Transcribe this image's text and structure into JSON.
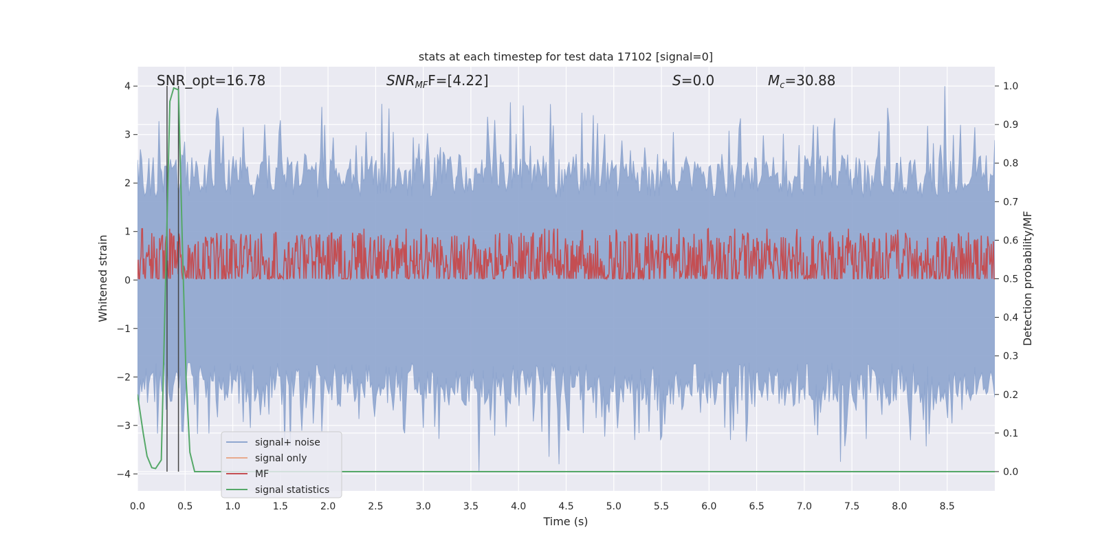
{
  "chart_data": {
    "type": "line",
    "title": "stats at each timestep for test data 17102 [signal=0]",
    "xlabel": "Time (s)",
    "ylabel": "Whitened strain",
    "ylabel_right": "Detection probability/MF",
    "xlim": [
      0.0,
      9.0
    ],
    "ylim": [
      -4.35,
      4.4
    ],
    "ylim_right": [
      -0.05,
      1.05
    ],
    "grid": true,
    "x_ticks": [
      "0.0",
      "0.5",
      "1.0",
      "1.5",
      "2.0",
      "2.5",
      "3.0",
      "3.5",
      "4.0",
      "4.5",
      "5.0",
      "5.5",
      "6.0",
      "6.5",
      "7.0",
      "7.5",
      "8.0",
      "8.5"
    ],
    "y_ticks": [
      "4",
      "3",
      "2",
      "1",
      "0",
      "−1",
      "−2",
      "−3",
      "−4"
    ],
    "y_ticks_right": [
      "1.0",
      "0.9",
      "0.8",
      "0.7",
      "0.6",
      "0.5",
      "0.4",
      "0.3",
      "0.2",
      "0.1",
      "0.0"
    ],
    "annotations": {
      "snr_opt": "SNR_opt=16.78",
      "snr_mf_main": "SNR",
      "snr_mf_sub": "MF",
      "snr_mf_rest": "F=[4.22]",
      "s_main": "S",
      "s_rest": "=0.0",
      "mc_main": "M",
      "mc_sub": "c",
      "mc_rest": "=30.88"
    },
    "vlines_x": [
      0.31,
      0.43
    ],
    "series": [
      {
        "name": "signal+ noise",
        "color": "#8fa6cf",
        "envelope": {
          "x_start": 0.0,
          "x_end": 9.0,
          "bins": 600,
          "seed": 17102,
          "upper_base": 1.7,
          "lower_base": -1.7,
          "notable_peaks": [
            [
              0.84,
              3.55
            ],
            [
              1.97,
              3.2
            ],
            [
              3.75,
              3.3
            ],
            [
              4.05,
              3.6
            ],
            [
              4.67,
              3.45
            ],
            [
              5.62,
              3.05
            ],
            [
              7.1,
              3.2
            ],
            [
              7.88,
              3.55
            ],
            [
              8.47,
              4.0
            ],
            [
              3.58,
              -3.95
            ],
            [
              4.42,
              -3.8
            ],
            [
              7.38,
              -3.75
            ],
            [
              6.22,
              -3.3
            ],
            [
              1.18,
              -3.05
            ],
            [
              3.0,
              -3.05
            ]
          ]
        }
      },
      {
        "name": "signal only",
        "color": "#e8a98c",
        "values": []
      },
      {
        "name": "MF",
        "color": "#c44e52",
        "axis": "right",
        "noise": {
          "x_start": 0.0,
          "x_end": 9.0,
          "points": 1200,
          "seed": 4,
          "base": 0.54,
          "spread": 0.08,
          "notable_peaks": [
            [
              0.05,
              0.63
            ],
            [
              1.45,
              0.62
            ],
            [
              3.3,
              0.61
            ],
            [
              4.67,
              0.625
            ],
            [
              6.22,
              0.61
            ],
            [
              8.47,
              0.61
            ]
          ]
        }
      },
      {
        "name": "signal statistics",
        "color": "#55a868",
        "axis": "right",
        "x": [
          0.0,
          0.06,
          0.1,
          0.15,
          0.19,
          0.25,
          0.3,
          0.34,
          0.38,
          0.43,
          0.47,
          0.51,
          0.55,
          0.6,
          1.0,
          2.0,
          2.2,
          3.0,
          9.0
        ],
        "values": [
          0.2,
          0.1,
          0.04,
          0.01,
          0.008,
          0.03,
          0.55,
          0.96,
          0.995,
          0.99,
          0.6,
          0.24,
          0.05,
          0.0,
          0.0,
          0.0,
          0.0,
          0.0,
          0.0
        ]
      }
    ],
    "legend": {
      "placement": "lower-left",
      "entries": [
        "signal+ noise",
        "signal only",
        "MF",
        "signal statistics"
      ],
      "colors": [
        "#8fa6cf",
        "#e8a98c",
        "#c44e52",
        "#55a868"
      ]
    }
  }
}
